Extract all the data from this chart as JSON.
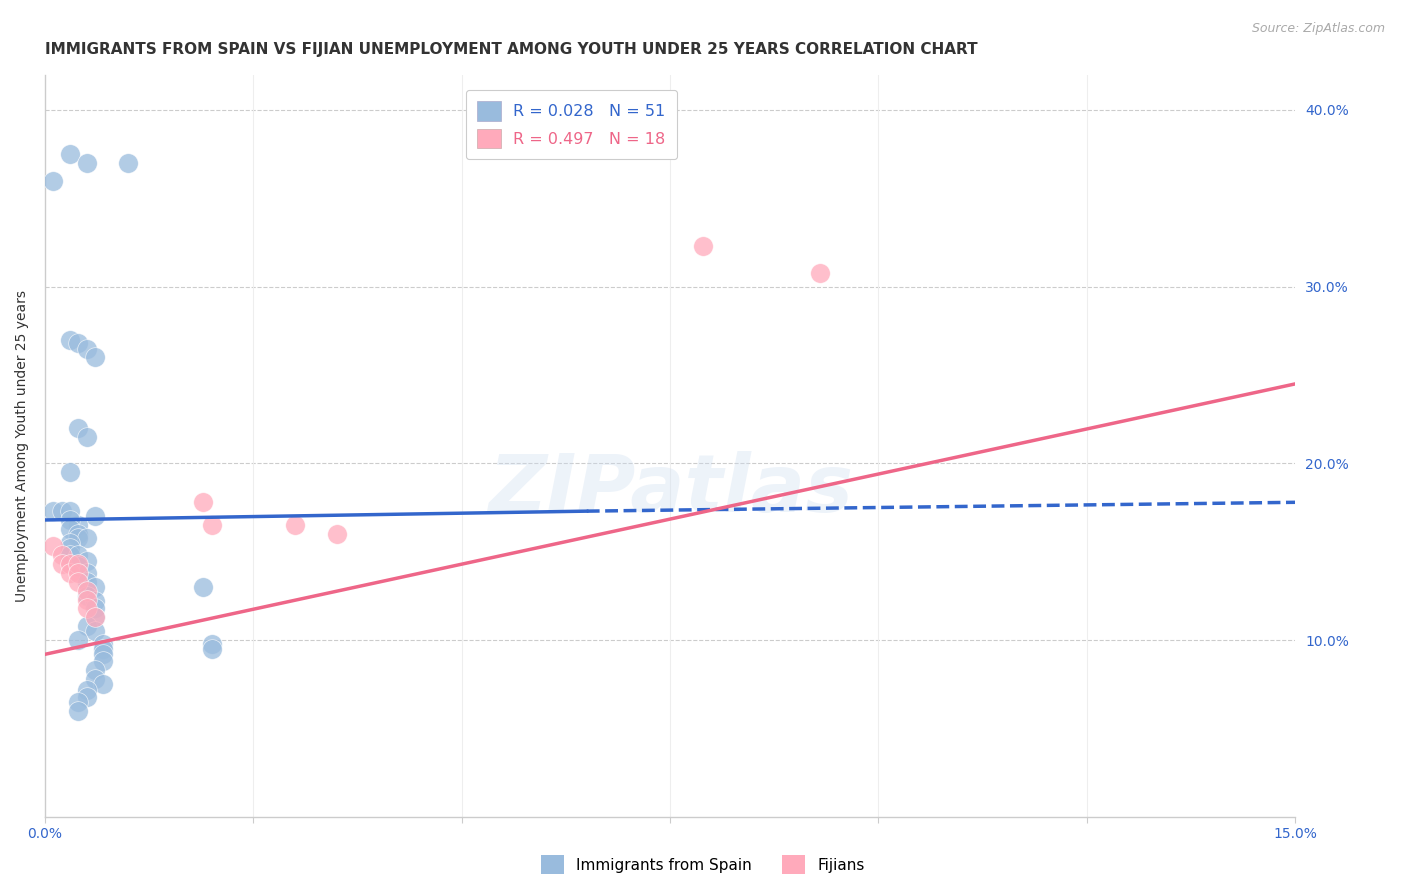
{
  "title": "IMMIGRANTS FROM SPAIN VS FIJIAN UNEMPLOYMENT AMONG YOUTH UNDER 25 YEARS CORRELATION CHART",
  "source": "Source: ZipAtlas.com",
  "ylabel": "Unemployment Among Youth under 25 years",
  "xlim": [
    0.0,
    0.15
  ],
  "ylim": [
    0.0,
    0.42
  ],
  "legend_r1": "R = 0.028",
  "legend_n1": "N = 51",
  "legend_r2": "R = 0.497",
  "legend_n2": "N = 18",
  "watermark": "ZIPatlas",
  "blue_scatter_color": "#99bbdd",
  "pink_scatter_color": "#ffaabb",
  "blue_line_color": "#3366cc",
  "pink_line_color": "#ee6688",
  "title_fontsize": 11,
  "axis_label_fontsize": 10,
  "tick_fontsize": 10,
  "scatter_spain": [
    [
      0.001,
      0.36
    ],
    [
      0.003,
      0.375
    ],
    [
      0.005,
      0.37
    ],
    [
      0.01,
      0.37
    ],
    [
      0.003,
      0.27
    ],
    [
      0.004,
      0.268
    ],
    [
      0.005,
      0.265
    ],
    [
      0.006,
      0.26
    ],
    [
      0.004,
      0.22
    ],
    [
      0.005,
      0.215
    ],
    [
      0.003,
      0.195
    ],
    [
      0.006,
      0.17
    ],
    [
      0.004,
      0.165
    ],
    [
      0.001,
      0.173
    ],
    [
      0.002,
      0.173
    ],
    [
      0.003,
      0.173
    ],
    [
      0.003,
      0.168
    ],
    [
      0.003,
      0.163
    ],
    [
      0.004,
      0.16
    ],
    [
      0.004,
      0.158
    ],
    [
      0.005,
      0.158
    ],
    [
      0.003,
      0.155
    ],
    [
      0.003,
      0.152
    ],
    [
      0.003,
      0.148
    ],
    [
      0.004,
      0.148
    ],
    [
      0.005,
      0.145
    ],
    [
      0.004,
      0.142
    ],
    [
      0.005,
      0.138
    ],
    [
      0.005,
      0.133
    ],
    [
      0.006,
      0.13
    ],
    [
      0.005,
      0.125
    ],
    [
      0.006,
      0.122
    ],
    [
      0.006,
      0.118
    ],
    [
      0.006,
      0.113
    ],
    [
      0.005,
      0.108
    ],
    [
      0.006,
      0.105
    ],
    [
      0.004,
      0.1
    ],
    [
      0.007,
      0.098
    ],
    [
      0.007,
      0.095
    ],
    [
      0.007,
      0.092
    ],
    [
      0.007,
      0.088
    ],
    [
      0.006,
      0.083
    ],
    [
      0.006,
      0.078
    ],
    [
      0.007,
      0.075
    ],
    [
      0.005,
      0.072
    ],
    [
      0.005,
      0.068
    ],
    [
      0.004,
      0.065
    ],
    [
      0.004,
      0.06
    ],
    [
      0.019,
      0.13
    ],
    [
      0.02,
      0.098
    ],
    [
      0.02,
      0.095
    ]
  ],
  "scatter_fijian": [
    [
      0.001,
      0.153
    ],
    [
      0.002,
      0.148
    ],
    [
      0.002,
      0.143
    ],
    [
      0.003,
      0.143
    ],
    [
      0.003,
      0.138
    ],
    [
      0.004,
      0.143
    ],
    [
      0.004,
      0.138
    ],
    [
      0.004,
      0.133
    ],
    [
      0.005,
      0.128
    ],
    [
      0.005,
      0.123
    ],
    [
      0.005,
      0.118
    ],
    [
      0.006,
      0.113
    ],
    [
      0.019,
      0.178
    ],
    [
      0.02,
      0.165
    ],
    [
      0.03,
      0.165
    ],
    [
      0.035,
      0.16
    ],
    [
      0.079,
      0.323
    ],
    [
      0.093,
      0.308
    ]
  ],
  "spain_line_solid": [
    [
      0.0,
      0.168
    ],
    [
      0.065,
      0.173
    ]
  ],
  "spain_line_dashed": [
    [
      0.065,
      0.173
    ],
    [
      0.15,
      0.178
    ]
  ],
  "fijian_line": [
    [
      0.0,
      0.092
    ],
    [
      0.15,
      0.245
    ]
  ],
  "background_color": "#ffffff",
  "grid_color": "#cccccc"
}
